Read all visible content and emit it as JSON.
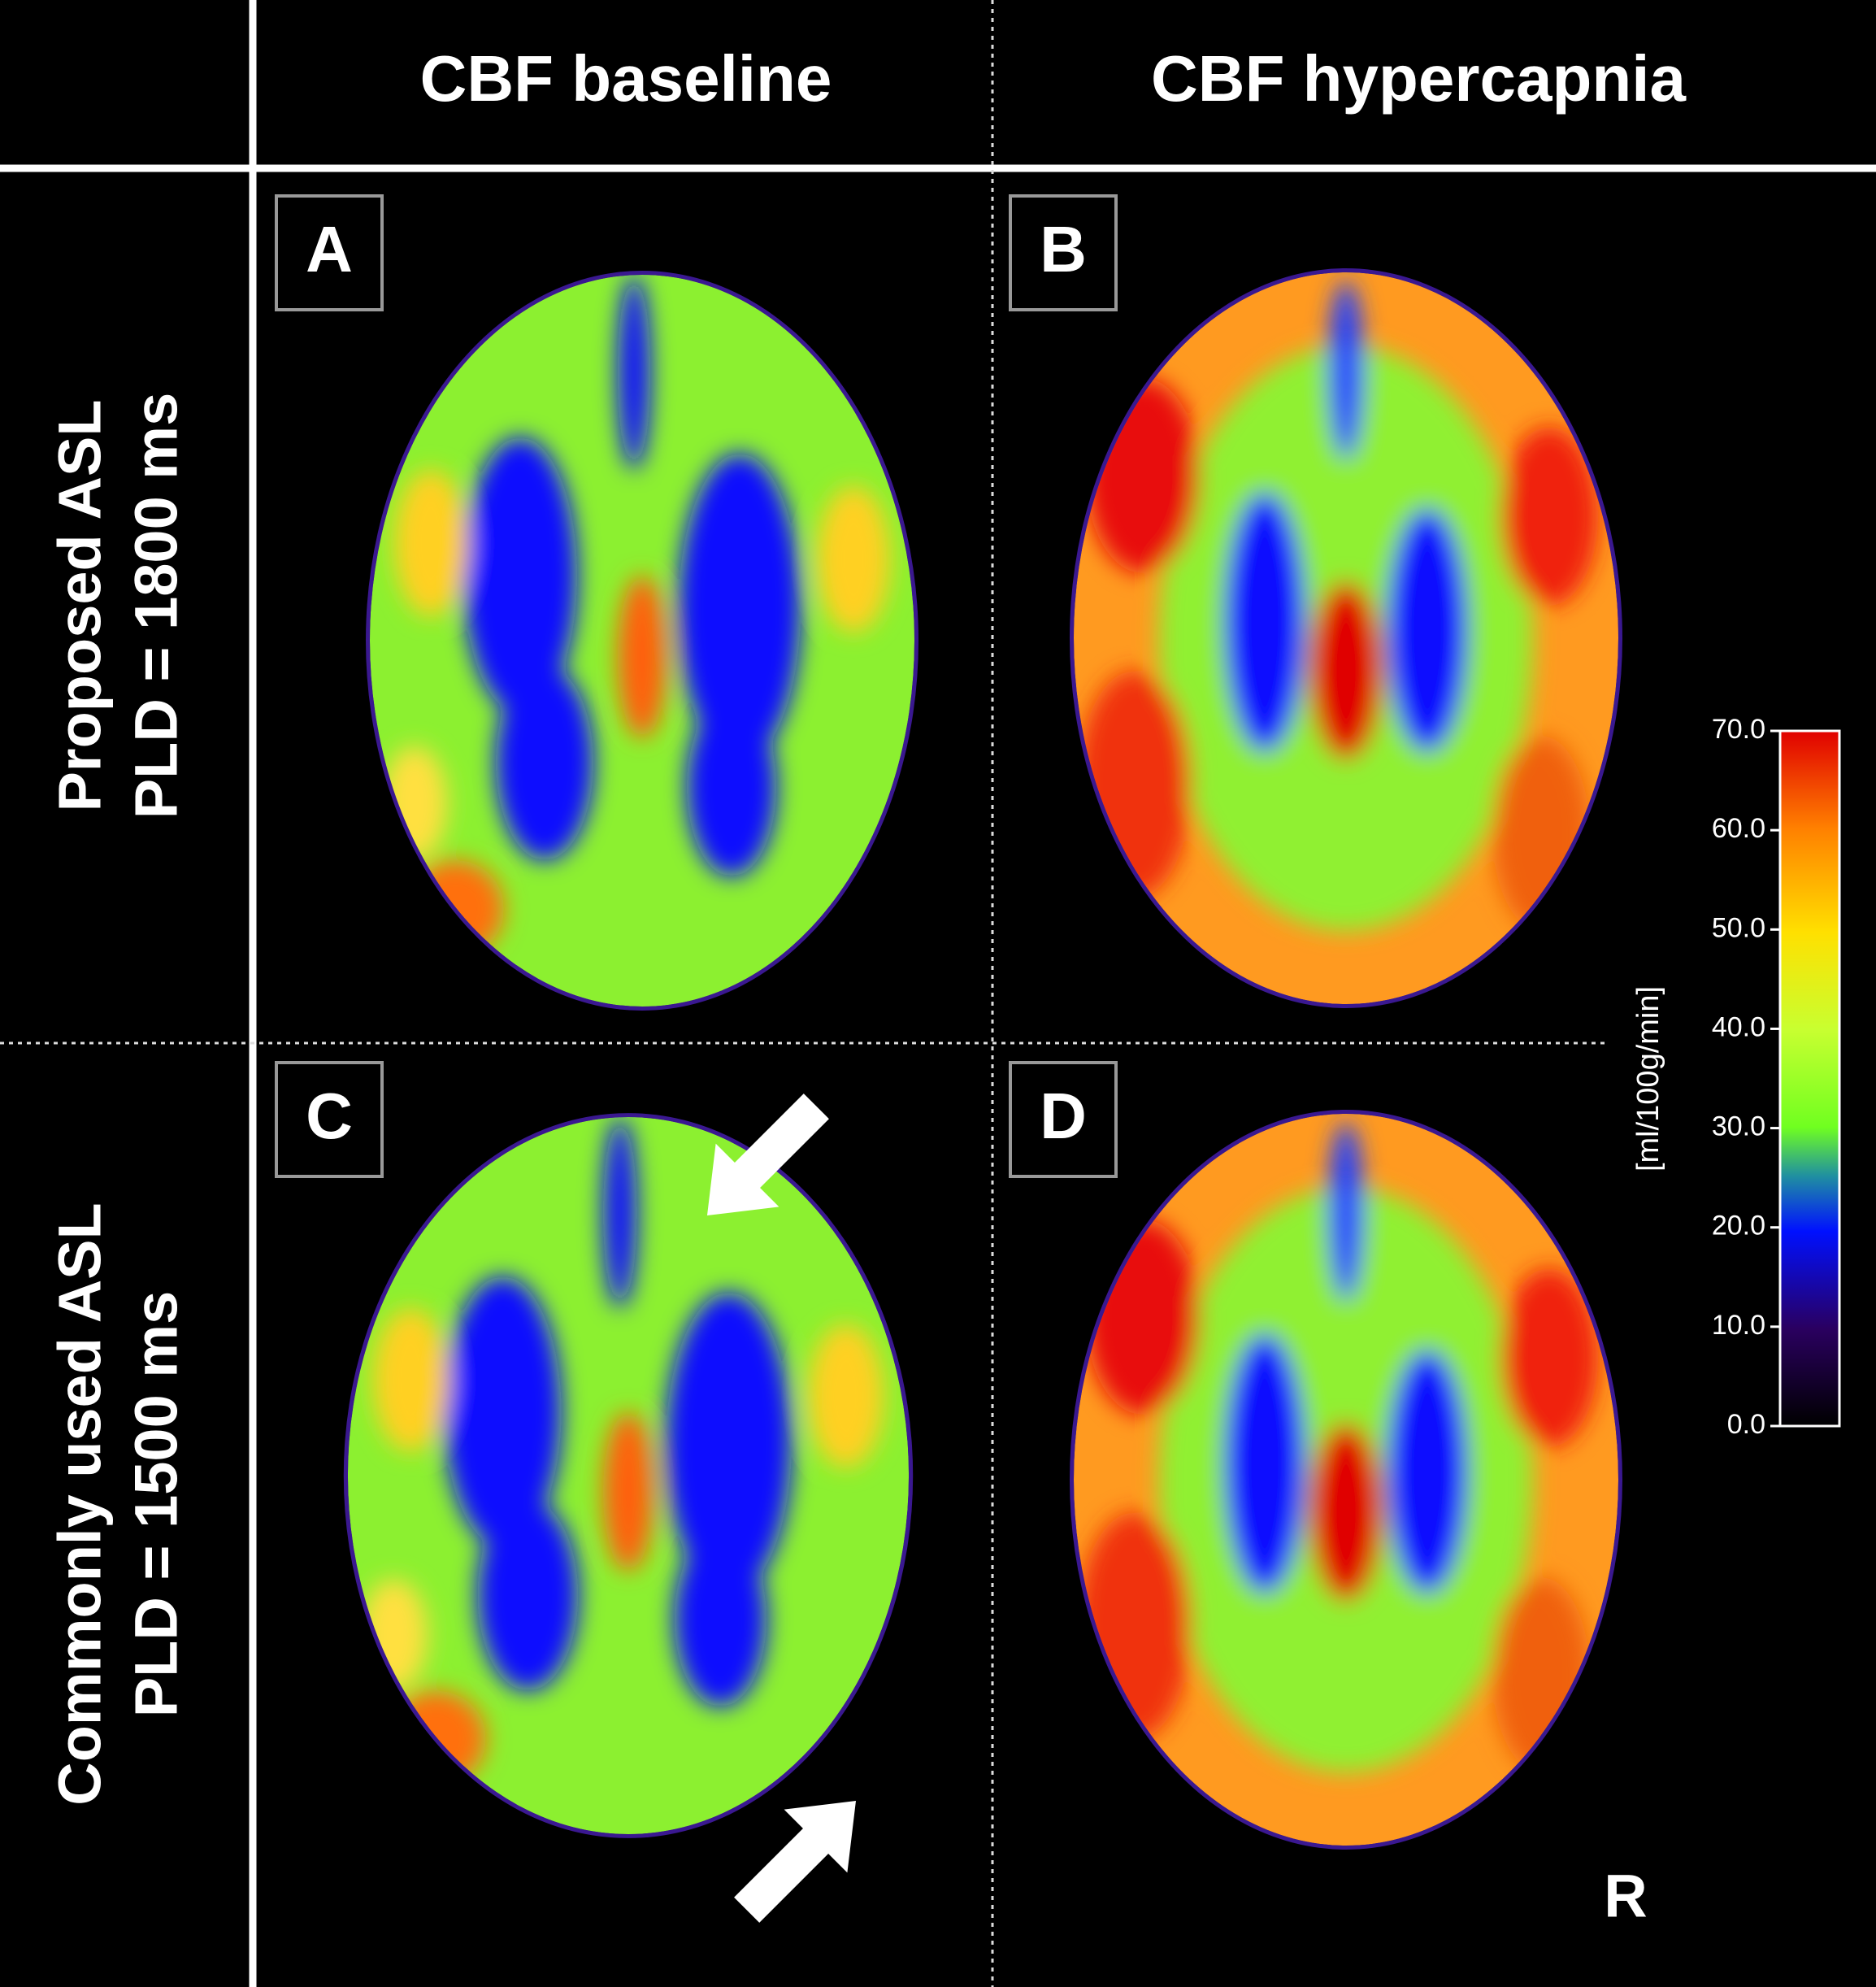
{
  "headers": {
    "columns": [
      "CBF baseline",
      "CBF hypercapnia"
    ]
  },
  "rows": [
    {
      "lines": [
        "Proposed ASL",
        "PLD = 1800 ms"
      ]
    },
    {
      "lines": [
        "Commonly used ASL",
        "PLD = 1500 ms"
      ]
    }
  ],
  "panels": [
    "A",
    "B",
    "C",
    "D"
  ],
  "colorbar": {
    "label": "[ml/100g/min]",
    "lim": [
      0,
      70
    ],
    "ticks": [
      {
        "value": 0,
        "label": "0.0"
      },
      {
        "value": 10,
        "label": "10.0"
      },
      {
        "value": 20,
        "label": "20.0"
      },
      {
        "value": 30,
        "label": "30.0"
      },
      {
        "value": 40,
        "label": "40.0"
      },
      {
        "value": 50,
        "label": "50.0"
      },
      {
        "value": 60,
        "label": "60.0"
      },
      {
        "value": 70,
        "label": "70.0"
      }
    ]
  },
  "orientation_label": "R"
}
